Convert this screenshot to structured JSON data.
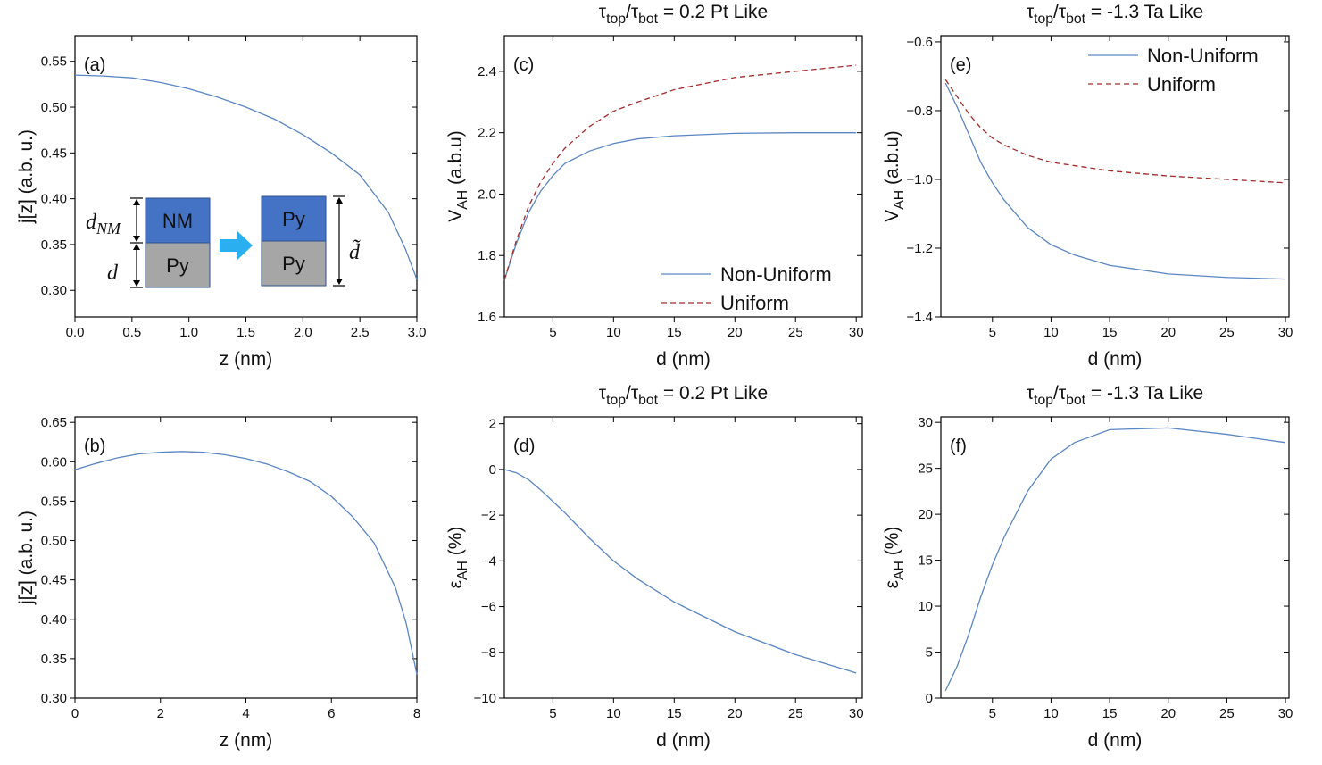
{
  "chart_data": [
    {
      "type": "line",
      "panel_label": "(a)",
      "x_label": "z (nm)",
      "y_label": "j[z]  (a.b. u.)",
      "xlim": [
        0,
        3
      ],
      "ylim": [
        0.271,
        0.578
      ],
      "xticks": [
        {
          "value": 0,
          "label": "0.0"
        },
        0.5,
        {
          "value": 1,
          "label": "1.0"
        },
        1.5,
        {
          "value": 2,
          "label": "2.0"
        },
        2.5,
        {
          "value": 3,
          "label": "3.0"
        }
      ],
      "yticks": [
        {
          "value": 0.3,
          "label": "0.30"
        },
        0.35,
        {
          "value": 0.4,
          "label": "0.40"
        },
        0.45,
        {
          "value": 0.5,
          "label": "0.50"
        },
        0.55
      ],
      "x": [
        0,
        0.25,
        0.5,
        0.75,
        1,
        1.25,
        1.5,
        1.75,
        2,
        2.25,
        2.5,
        2.75,
        2.9,
        3
      ],
      "series": [
        {
          "color": "#5b86c4",
          "values": [
            0.535,
            0.534,
            0.532,
            0.527,
            0.52,
            0.511,
            0.5,
            0.487,
            0.47,
            0.45,
            0.426,
            0.385,
            0.345,
            0.312
          ]
        }
      ],
      "inset": {
        "blocks": [
          "NM",
          "Py",
          "Py",
          "Py"
        ],
        "thickness_labels": [
          [
            {
              "text": "d"
            },
            {
              "text": "NM",
              "sub": true
            }
          ],
          [
            {
              "text": "d"
            }
          ],
          [
            {
              "text": "d̃"
            }
          ]
        ]
      }
    },
    {
      "type": "line",
      "panel_label": "(b)",
      "x_label": "z (nm)",
      "y_label": "j[z]  (a.b. u.)",
      "xlim": [
        0,
        8
      ],
      "ylim": [
        0.3,
        0.657
      ],
      "xticks": [
        0,
        2,
        4,
        6,
        8
      ],
      "yticks": [
        {
          "value": 0.3,
          "label": "0.30"
        },
        0.35,
        {
          "value": 0.4,
          "label": "0.40"
        },
        0.45,
        {
          "value": 0.5,
          "label": "0.50"
        },
        0.55,
        {
          "value": 0.6,
          "label": "0.60"
        },
        0.65
      ],
      "x": [
        0,
        0.5,
        1,
        1.5,
        2,
        2.5,
        3,
        3.5,
        4,
        4.5,
        5,
        5.5,
        6,
        6.5,
        7,
        7.5,
        7.75,
        8
      ],
      "series": [
        {
          "color": "#5b86c4",
          "values": [
            0.59,
            0.598,
            0.605,
            0.61,
            0.612,
            0.613,
            0.612,
            0.609,
            0.604,
            0.597,
            0.587,
            0.575,
            0.556,
            0.53,
            0.497,
            0.44,
            0.395,
            0.33
          ]
        }
      ]
    },
    {
      "type": "line",
      "panel_label": "(c)",
      "title": [
        {
          "text": "τ"
        },
        {
          "text": "top",
          "sub": true
        },
        {
          "text": "/τ"
        },
        {
          "text": "bot",
          "sub": true
        },
        {
          "text": " = 0.2 Pt Like"
        }
      ],
      "x_label": "d (nm)",
      "y_label": [
        {
          "text": "V"
        },
        {
          "text": "AH",
          "sub": true
        },
        {
          "text": " (a.b.u)"
        }
      ],
      "xlim": [
        1,
        30.5
      ],
      "ylim": [
        1.6,
        2.516
      ],
      "xticks": [
        5,
        10,
        15,
        20,
        25,
        30
      ],
      "yticks": [
        1.6,
        1.8,
        {
          "value": 2,
          "label": "2.0"
        },
        2.2,
        2.4
      ],
      "legend": "lower right",
      "x": [
        1,
        2,
        3,
        4,
        5,
        6,
        8,
        10,
        12,
        15,
        20,
        25,
        30
      ],
      "series": [
        {
          "name": "Non-Uniform",
          "color": "#5b86c4",
          "dash": false,
          "values": [
            1.72,
            1.84,
            1.94,
            2.01,
            2.06,
            2.1,
            2.14,
            2.165,
            2.18,
            2.19,
            2.198,
            2.2,
            2.2
          ]
        },
        {
          "name": "Uniform",
          "color": "#a52a2a",
          "dash": true,
          "values": [
            1.72,
            1.85,
            1.96,
            2.04,
            2.1,
            2.15,
            2.22,
            2.27,
            2.3,
            2.34,
            2.38,
            2.4,
            2.42
          ]
        }
      ]
    },
    {
      "type": "line",
      "panel_label": "(d)",
      "title": [
        {
          "text": "τ"
        },
        {
          "text": "top",
          "sub": true
        },
        {
          "text": "/τ"
        },
        {
          "text": "bot",
          "sub": true
        },
        {
          "text": " = 0.2 Pt Like"
        }
      ],
      "x_label": "d (nm)",
      "y_label": [
        {
          "text": "ε"
        },
        {
          "text": "AH",
          "sub": true
        },
        {
          "text": " (%)"
        }
      ],
      "xlim": [
        1,
        30.5
      ],
      "ylim": [
        -10,
        2.3
      ],
      "xticks": [
        5,
        10,
        15,
        20,
        25,
        30
      ],
      "yticks": [
        {
          "value": -10,
          "label": "−10"
        },
        {
          "value": -8,
          "label": "−8"
        },
        {
          "value": -6,
          "label": "−6"
        },
        {
          "value": -4,
          "label": "−4"
        },
        {
          "value": -2,
          "label": "−2"
        },
        0,
        2
      ],
      "x": [
        1,
        2,
        3,
        4,
        5,
        6,
        8,
        10,
        12,
        15,
        20,
        25,
        30
      ],
      "series": [
        {
          "color": "#5b86c4",
          "values": [
            0,
            -0.15,
            -0.45,
            -0.9,
            -1.4,
            -1.9,
            -3.0,
            -4.0,
            -4.8,
            -5.8,
            -7.1,
            -8.1,
            -8.9
          ]
        }
      ]
    },
    {
      "type": "line",
      "panel_label": "(e)",
      "title": [
        {
          "text": "τ"
        },
        {
          "text": "top",
          "sub": true
        },
        {
          "text": "/τ"
        },
        {
          "text": "bot",
          "sub": true
        },
        {
          "text": " = -1.3 Ta Like"
        }
      ],
      "x_label": "d (nm)",
      "y_label": [
        {
          "text": "V"
        },
        {
          "text": "AH",
          "sub": true
        },
        {
          "text": " (a.b.u)"
        }
      ],
      "xlim": [
        0.6,
        30.3
      ],
      "ylim": [
        -1.4,
        -0.582
      ],
      "xticks": [
        5,
        10,
        15,
        20,
        25,
        30
      ],
      "yticks": [
        {
          "value": -1.4,
          "label": "−1.4"
        },
        {
          "value": -1.2,
          "label": "−1.2"
        },
        {
          "value": -1,
          "label": "−1.0"
        },
        {
          "value": -0.8,
          "label": "−0.8"
        },
        {
          "value": -0.6,
          "label": "−0.6"
        }
      ],
      "legend": "upper right",
      "x": [
        1,
        2,
        3,
        4,
        5,
        6,
        8,
        10,
        12,
        15,
        20,
        25,
        30
      ],
      "series": [
        {
          "name": "Non-Uniform",
          "color": "#5b86c4",
          "dash": false,
          "values": [
            -0.72,
            -0.79,
            -0.87,
            -0.95,
            -1.01,
            -1.06,
            -1.14,
            -1.19,
            -1.22,
            -1.25,
            -1.275,
            -1.285,
            -1.29
          ]
        },
        {
          "name": "Uniform",
          "color": "#a52a2a",
          "dash": true,
          "values": [
            -0.71,
            -0.76,
            -0.81,
            -0.85,
            -0.88,
            -0.9,
            -0.93,
            -0.95,
            -0.96,
            -0.975,
            -0.99,
            -1.0,
            -1.01
          ]
        }
      ]
    },
    {
      "type": "line",
      "panel_label": "(f)",
      "title": [
        {
          "text": "τ"
        },
        {
          "text": "top",
          "sub": true
        },
        {
          "text": "/τ"
        },
        {
          "text": "bot",
          "sub": true
        },
        {
          "text": " = -1.3 Ta Like"
        }
      ],
      "x_label": "d (nm)",
      "y_label": [
        {
          "text": "ε"
        },
        {
          "text": "AH",
          "sub": true
        },
        {
          "text": " (%)"
        }
      ],
      "xlim": [
        0.6,
        30.3
      ],
      "ylim": [
        0,
        30.6
      ],
      "xticks": [
        5,
        10,
        15,
        20,
        25,
        30
      ],
      "yticks": [
        0,
        5,
        10,
        15,
        20,
        25,
        30
      ],
      "x": [
        1,
        2,
        3,
        4,
        5,
        6,
        8,
        10,
        12,
        15,
        20,
        25,
        30
      ],
      "series": [
        {
          "color": "#5b86c4",
          "values": [
            0.8,
            3.5,
            7,
            11,
            14.5,
            17.5,
            22.5,
            26,
            27.8,
            29.2,
            29.4,
            28.7,
            27.8
          ]
        }
      ]
    }
  ]
}
